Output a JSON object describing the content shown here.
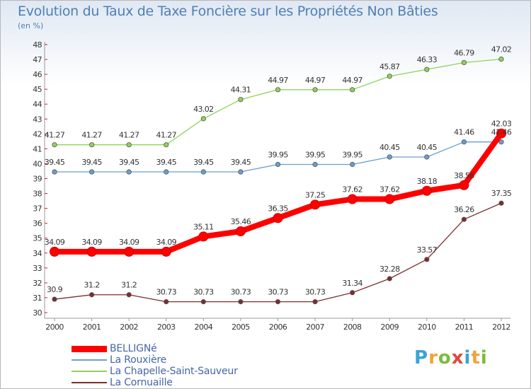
{
  "chart_data": {
    "type": "line",
    "title": "Evolution du Taux de Taxe Foncière sur les Propriétés Non Bâties",
    "unit_label": "(en %)",
    "x": [
      "2000",
      "2001",
      "2002",
      "2003",
      "2004",
      "2005",
      "2006",
      "2007",
      "2008",
      "2009",
      "2010",
      "2011",
      "2012"
    ],
    "y_ticks": [
      "30",
      "31",
      "32",
      "33",
      "34",
      "35",
      "36",
      "37",
      "38",
      "39",
      "40",
      "41",
      "42",
      "43",
      "44",
      "45",
      "46",
      "47",
      "48"
    ],
    "ylim": [
      30,
      48
    ],
    "grid": false,
    "legend_position": "bottom-left",
    "series": [
      {
        "name": "BELLIGNé",
        "color": "#ff0000",
        "values": [
          34.09,
          34.09,
          34.09,
          34.09,
          35.11,
          35.46,
          36.35,
          37.25,
          37.62,
          37.62,
          38.18,
          38.56,
          42.03
        ],
        "labels": [
          "34.09",
          "34.09",
          "34.09",
          "34.09",
          "35.11",
          "35.46",
          "36.35",
          "37.25",
          "37.62",
          "37.62",
          "38.18",
          "38.56",
          "42.03"
        ]
      },
      {
        "name": "La Rouxière",
        "color": "#6a9fcf",
        "values": [
          39.45,
          39.45,
          39.45,
          39.45,
          39.45,
          39.45,
          39.95,
          39.95,
          39.95,
          40.45,
          40.45,
          41.46,
          41.46
        ],
        "labels": [
          "39.45",
          "39.45",
          "39.45",
          "39.45",
          "39.45",
          "39.45",
          "39.95",
          "39.95",
          "39.95",
          "40.45",
          "40.45",
          "41.46",
          "41.46"
        ]
      },
      {
        "name": "La Chapelle-Saint-Sauveur",
        "color": "#8fd35a",
        "values": [
          41.27,
          41.27,
          41.27,
          41.27,
          43.02,
          44.31,
          44.97,
          44.97,
          44.97,
          45.87,
          46.33,
          46.79,
          47.02
        ],
        "labels": [
          "41.27",
          "41.27",
          "41.27",
          "41.27",
          "43.02",
          "44.31",
          "44.97",
          "44.97",
          "44.97",
          "45.87",
          "46.33",
          "46.79",
          "47.02"
        ]
      },
      {
        "name": "La Cornuaille",
        "color": "#7a2e2e",
        "values": [
          30.9,
          31.2,
          31.2,
          30.73,
          30.73,
          30.73,
          30.73,
          30.73,
          31.34,
          32.28,
          33.57,
          36.26,
          37.35
        ],
        "labels": [
          "30.9",
          "31.2",
          "31.2",
          "30.73",
          "30.73",
          "30.73",
          "30.73",
          "30.73",
          "31.34",
          "32.28",
          "33.57",
          "36.26",
          "37.35"
        ]
      }
    ]
  },
  "brand": {
    "letters": [
      "P",
      "r",
      "o",
      "x",
      "i",
      "t",
      "i"
    ]
  }
}
